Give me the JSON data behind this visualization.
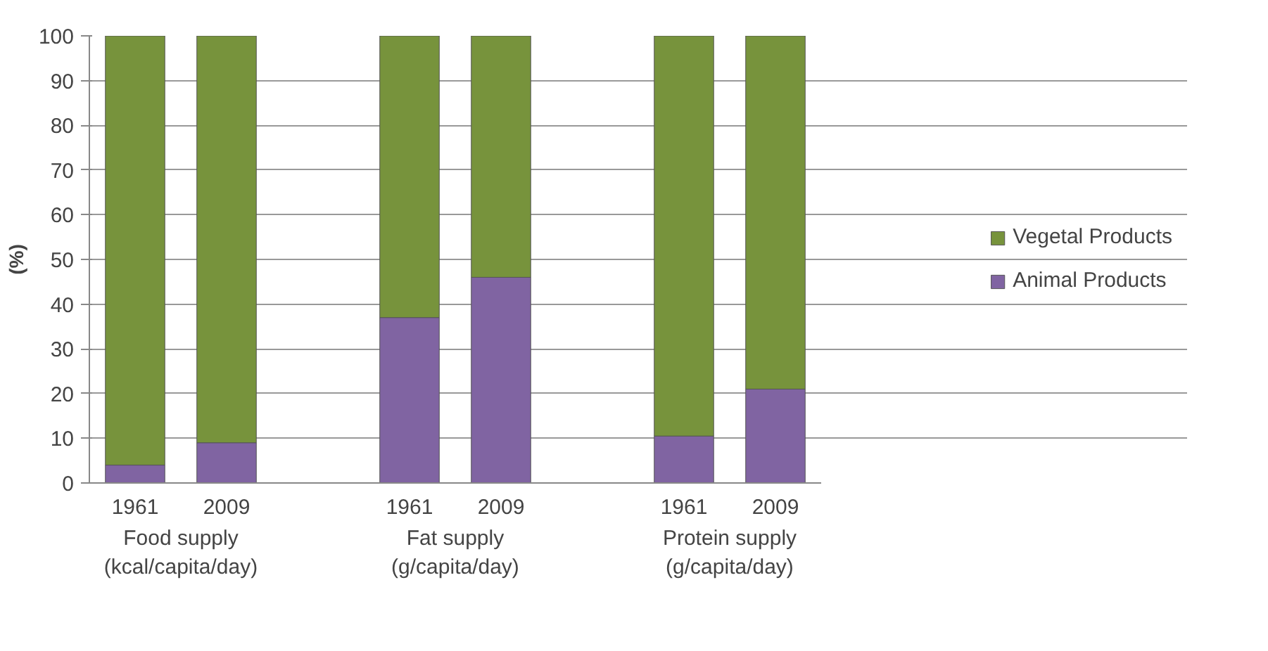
{
  "chart_data": {
    "type": "bar",
    "stacked": true,
    "ylabel": "(%)",
    "categories": [
      "1961",
      "2009",
      null,
      "1961",
      "2009",
      null,
      "1961",
      "2009"
    ],
    "annotations": [
      "Food supply (kcal/capita/day)",
      "Fat supply (g/capita/day)",
      "Protein supply (g/capita/day)"
    ],
    "series": [
      {
        "name": "Animal Products",
        "color": "#8064a2",
        "values": [
          4,
          9,
          null,
          37,
          46,
          null,
          10.5,
          21
        ]
      },
      {
        "name": "Vegetal Products",
        "color": "#77933c",
        "values": [
          96,
          91,
          null,
          63,
          54,
          null,
          89.5,
          79
        ]
      }
    ],
    "ylim": [
      0,
      100
    ],
    "yticks": [
      0,
      10,
      20,
      30,
      40,
      50,
      60,
      70,
      80,
      90,
      100
    ],
    "grid": "y",
    "legend": "right"
  }
}
